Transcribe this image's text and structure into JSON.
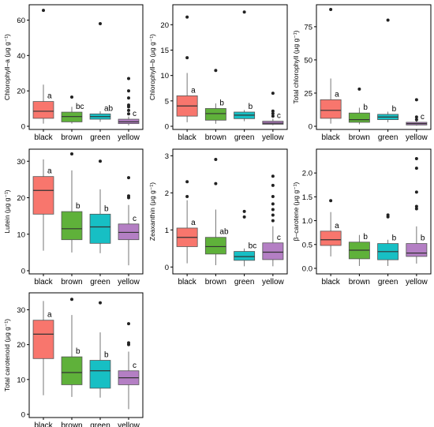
{
  "colors": {
    "black": "#f8766d",
    "brown": "#5fb13a",
    "green": "#17bfc4",
    "yellow": "#b47fc4"
  },
  "chart_data": [
    {
      "type": "box",
      "ylabel": "Chlorophyll–a (μg g⁻¹)",
      "ylim": [
        0,
        66
      ],
      "yticks": [
        0,
        20,
        40,
        60
      ],
      "categories": [
        "black",
        "brown",
        "green",
        "yellow"
      ],
      "boxes": [
        {
          "category": "black",
          "min": 1.5,
          "q1": 4.5,
          "median": 8.5,
          "q3": 14,
          "max": 23.5,
          "outliers": [
            65.5
          ],
          "letter": "a"
        },
        {
          "category": "brown",
          "min": 1.5,
          "q1": 2.5,
          "median": 5.5,
          "q3": 8,
          "max": 11,
          "outliers": [
            16.5
          ],
          "letter": "bc"
        },
        {
          "category": "green",
          "min": 2.5,
          "q1": 4,
          "median": 5.5,
          "q3": 7,
          "max": 8.5,
          "outliers": [
            58
          ],
          "letter": "ab"
        },
        {
          "category": "yellow",
          "min": 0.5,
          "q1": 1.5,
          "median": 2.5,
          "q3": 4,
          "max": 5.5,
          "outliers": [
            7,
            9,
            11,
            12,
            16,
            20,
            27
          ],
          "letter": "c"
        }
      ]
    },
    {
      "type": "box",
      "ylabel": "Chlorophyll–b (μg g⁻¹)",
      "ylim": [
        0,
        23
      ],
      "yticks": [
        0,
        5,
        10,
        15,
        20
      ],
      "categories": [
        "black",
        "brown",
        "green",
        "yellow"
      ],
      "boxes": [
        {
          "category": "black",
          "min": 0.8,
          "q1": 2,
          "median": 4,
          "q3": 6,
          "max": 10.5,
          "outliers": [
            13.5,
            21.5
          ],
          "letter": "a"
        },
        {
          "category": "brown",
          "min": 0.5,
          "q1": 1.2,
          "median": 2.5,
          "q3": 3.5,
          "max": 4.5,
          "outliers": [
            11
          ],
          "letter": "b"
        },
        {
          "category": "green",
          "min": 1,
          "q1": 1.5,
          "median": 2.2,
          "q3": 2.8,
          "max": 3.2,
          "outliers": [
            22.5
          ],
          "letter": "b"
        },
        {
          "category": "yellow",
          "min": 0.2,
          "q1": 0.4,
          "median": 0.6,
          "q3": 1,
          "max": 1.5,
          "outliers": [
            2,
            2.5,
            3,
            6.5
          ],
          "letter": "c"
        }
      ]
    },
    {
      "type": "box",
      "ylabel": "Total chlorophyll (μg g⁻¹)",
      "ylim": [
        0,
        88
      ],
      "yticks": [
        0,
        25,
        50,
        75
      ],
      "categories": [
        "black",
        "brown",
        "green",
        "yellow"
      ],
      "boxes": [
        {
          "category": "black",
          "min": 2,
          "q1": 6,
          "median": 12,
          "q3": 20,
          "max": 36,
          "outliers": [
            88
          ],
          "letter": "a"
        },
        {
          "category": "brown",
          "min": 1.5,
          "q1": 3,
          "median": 5,
          "q3": 10,
          "max": 14,
          "outliers": [
            28
          ],
          "letter": "b"
        },
        {
          "category": "green",
          "min": 3,
          "q1": 5,
          "median": 7,
          "q3": 9,
          "max": 11,
          "outliers": [
            80
          ],
          "letter": "b"
        },
        {
          "category": "yellow",
          "min": 0.5,
          "q1": 1,
          "median": 2,
          "q3": 3,
          "max": 4,
          "outliers": [
            5,
            7,
            20
          ],
          "letter": "c"
        }
      ]
    },
    {
      "type": "box",
      "ylabel": "Lutein (μg g⁻¹)",
      "ylim": [
        0,
        32
      ],
      "yticks": [
        0,
        10,
        20,
        30
      ],
      "categories": [
        "black",
        "brown",
        "green",
        "yellow"
      ],
      "boxes": [
        {
          "category": "black",
          "min": 5.5,
          "q1": 15.5,
          "median": 22,
          "q3": 25.8,
          "max": 30.5,
          "outliers": [],
          "letter": "a"
        },
        {
          "category": "brown",
          "min": 5,
          "q1": 8.5,
          "median": 11.5,
          "q3": 16.2,
          "max": 27.5,
          "outliers": [
            32
          ],
          "letter": "b"
        },
        {
          "category": "green",
          "min": 4.8,
          "q1": 7.5,
          "median": 12,
          "q3": 15.5,
          "max": 22.3,
          "outliers": [
            30
          ],
          "letter": "b"
        },
        {
          "category": "yellow",
          "min": 1.5,
          "q1": 8.5,
          "median": 10.5,
          "q3": 12.8,
          "max": 18,
          "outliers": [
            20,
            20.5,
            25.5
          ],
          "letter": "c"
        }
      ]
    },
    {
      "type": "box",
      "ylabel": "Zeaxanthin (μg g⁻¹)",
      "ylim": [
        -0.1,
        3.05
      ],
      "yticks": [
        0,
        1,
        2,
        3
      ],
      "categories": [
        "black",
        "brown",
        "green",
        "yellow"
      ],
      "boxes": [
        {
          "category": "black",
          "min": 0.1,
          "q1": 0.55,
          "median": 0.8,
          "q3": 1.05,
          "max": 1.8,
          "outliers": [
            1.9,
            2.3
          ],
          "letter": "a"
        },
        {
          "category": "brown",
          "min": 0.05,
          "q1": 0.35,
          "median": 0.55,
          "q3": 0.8,
          "max": 1.55,
          "outliers": [
            2.25,
            2.9
          ],
          "letter": "ab"
        },
        {
          "category": "green",
          "min": 0.02,
          "q1": 0.18,
          "median": 0.28,
          "q3": 0.42,
          "max": 0.5,
          "outliers": [
            1.35,
            1.5
          ],
          "letter": "bc"
        },
        {
          "category": "yellow",
          "min": 0.02,
          "q1": 0.2,
          "median": 0.4,
          "q3": 0.65,
          "max": 1.1,
          "outliers": [
            1.25,
            1.4,
            1.55,
            1.7,
            1.9,
            2.2,
            2.45
          ],
          "letter": "c"
        }
      ]
    },
    {
      "type": "box",
      "ylabel": "β–carotene (μg g⁻¹)",
      "ylim": [
        -0.05,
        2.4
      ],
      "yticks": [
        0.0,
        0.5,
        1.0,
        1.5,
        2.0
      ],
      "ytick_labels": [
        "0.0",
        "0.5",
        "1.0",
        "1.5",
        "2.0"
      ],
      "categories": [
        "black",
        "brown",
        "green",
        "yellow"
      ],
      "boxes": [
        {
          "category": "black",
          "min": 0.25,
          "q1": 0.48,
          "median": 0.6,
          "q3": 0.78,
          "max": 1.18,
          "outliers": [
            1.42
          ],
          "letter": "a"
        },
        {
          "category": "brown",
          "min": 0.05,
          "q1": 0.2,
          "median": 0.38,
          "q3": 0.55,
          "max": 0.7,
          "outliers": [],
          "letter": "b"
        },
        {
          "category": "green",
          "min": 0.05,
          "q1": 0.18,
          "median": 0.35,
          "q3": 0.52,
          "max": 0.6,
          "outliers": [
            1.08,
            1.12
          ],
          "letter": "b"
        },
        {
          "category": "yellow",
          "min": 0.1,
          "q1": 0.25,
          "median": 0.32,
          "q3": 0.52,
          "max": 0.88,
          "outliers": [
            1.25,
            1.3,
            1.6,
            2.1,
            2.3
          ],
          "letter": "b"
        }
      ]
    },
    {
      "type": "box",
      "ylabel": "Total carotenoid (μg g⁻¹)",
      "ylim": [
        0,
        33.5
      ],
      "yticks": [
        0,
        10,
        20,
        30
      ],
      "categories": [
        "black",
        "brown",
        "green",
        "yellow"
      ],
      "boxes": [
        {
          "category": "black",
          "min": 5.5,
          "q1": 16,
          "median": 23,
          "q3": 27,
          "max": 32.5,
          "outliers": [],
          "letter": "a"
        },
        {
          "category": "brown",
          "min": 5,
          "q1": 8.5,
          "median": 12,
          "q3": 16.5,
          "max": 28.5,
          "outliers": [
            33
          ],
          "letter": "b"
        },
        {
          "category": "green",
          "min": 4.8,
          "q1": 7.5,
          "median": 12.5,
          "q3": 15.5,
          "max": 23.5,
          "outliers": [
            32
          ],
          "letter": "b"
        },
        {
          "category": "yellow",
          "min": 1.5,
          "q1": 8.5,
          "median": 10.5,
          "q3": 12.5,
          "max": 18,
          "outliers": [
            20,
            20.5,
            26
          ],
          "letter": "c"
        }
      ]
    }
  ]
}
